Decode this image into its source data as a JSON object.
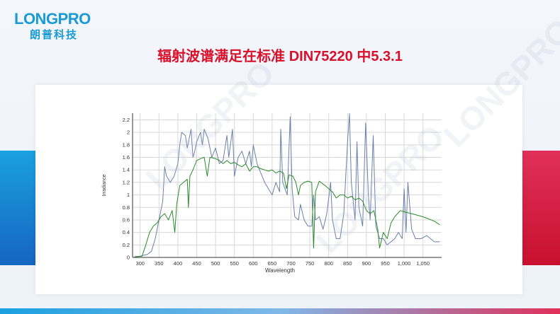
{
  "brand": {
    "logo_text": "LONGPRO",
    "logo_cn": "朗普科技",
    "watermark": "LONGPRO"
  },
  "slide": {
    "title": "辐射波谱满足在标准 DIN75220 中5.3.1"
  },
  "colors": {
    "title": "#d8102a",
    "brand": "#1a9ad6",
    "series_blue": "#6b80aa",
    "series_green": "#2b8a2b"
  },
  "chart_data": {
    "type": "line",
    "xlabel": "Wavelength",
    "ylabel": "Irradiance",
    "xlim": [
      282,
      1100
    ],
    "ylim": [
      0,
      2.3
    ],
    "xticks": [
      "300",
      "350",
      "400",
      "450",
      "500",
      "550",
      "600",
      "650",
      "700",
      "750",
      "800",
      "850",
      "900",
      "950",
      "1,000",
      "1,050"
    ],
    "yticks": [
      "0",
      "0.2",
      "0.4",
      "0.6",
      "0.8",
      "1",
      "1.2",
      "1.4",
      "1.6",
      "1.8",
      "2",
      "2.2"
    ],
    "grid": true,
    "series": [
      {
        "color": "#6b80aa",
        "x": [
          285,
          300,
          320,
          330,
          340,
          350,
          360,
          365,
          370,
          380,
          390,
          400,
          405,
          410,
          420,
          425,
          430,
          435,
          440,
          445,
          450,
          460,
          465,
          470,
          480,
          490,
          500,
          510,
          520,
          530,
          535,
          545,
          550,
          560,
          570,
          580,
          590,
          595,
          600,
          610,
          620,
          630,
          640,
          650,
          660,
          670,
          673,
          678,
          690,
          698,
          703,
          710,
          720,
          725,
          735,
          745,
          755,
          760,
          765,
          775,
          785,
          795,
          805,
          810,
          820,
          830,
          840,
          850,
          855,
          860,
          870,
          875,
          880,
          890,
          898,
          905,
          910,
          918,
          925,
          935,
          945,
          955,
          965,
          975,
          985,
          995,
          1000,
          1005,
          1010,
          1020,
          1030,
          1045,
          1060,
          1080,
          1095
        ],
        "y": [
          0.01,
          0.02,
          0.05,
          0.1,
          0.3,
          0.6,
          0.9,
          1.45,
          1.3,
          1.2,
          1.3,
          1.5,
          1.8,
          2.0,
          1.95,
          1.75,
          1.9,
          2.05,
          1.6,
          1.7,
          1.85,
          2.0,
          1.8,
          2.05,
          1.9,
          1.6,
          1.75,
          1.5,
          1.55,
          1.95,
          1.6,
          2.05,
          1.3,
          1.6,
          1.7,
          1.5,
          1.7,
          1.45,
          1.8,
          1.5,
          1.35,
          1.2,
          1.1,
          1.0,
          1.2,
          1.05,
          2.05,
          1.2,
          1.0,
          2.25,
          1.1,
          0.65,
          0.6,
          0.85,
          0.6,
          0.5,
          0.5,
          1.0,
          0.6,
          0.65,
          0.45,
          0.7,
          1.2,
          0.6,
          0.3,
          0.3,
          0.7,
          1.85,
          2.3,
          1.2,
          0.6,
          1.85,
          0.8,
          0.5,
          2.15,
          1.0,
          0.6,
          1.95,
          0.5,
          0.3,
          0.3,
          0.2,
          0.25,
          0.3,
          0.4,
          0.3,
          1.1,
          0.4,
          1.2,
          0.45,
          0.3,
          0.3,
          0.35,
          0.25,
          0.25
        ]
      },
      {
        "color": "#2b8a2b",
        "x": [
          285,
          305,
          315,
          325,
          335,
          345,
          355,
          365,
          375,
          385,
          392,
          397,
          405,
          415,
          425,
          428,
          432,
          440,
          450,
          460,
          470,
          478,
          485,
          500,
          510,
          520,
          530,
          540,
          550,
          560,
          570,
          580,
          590,
          600,
          610,
          620,
          630,
          640,
          650,
          660,
          670,
          680,
          688,
          695,
          705,
          713,
          720,
          725,
          735,
          745,
          755,
          760,
          765,
          775,
          790,
          800,
          810,
          820,
          830,
          840,
          850,
          860,
          870,
          880,
          890,
          900,
          910,
          920,
          930,
          935,
          945,
          955,
          965,
          975,
          990,
          1000,
          1020,
          1050,
          1080,
          1095
        ],
        "y": [
          0.01,
          0.02,
          0.2,
          0.4,
          0.5,
          0.55,
          0.65,
          0.7,
          0.6,
          0.75,
          0.4,
          0.85,
          1.15,
          1.2,
          1.25,
          0.8,
          1.3,
          1.4,
          1.55,
          1.58,
          1.6,
          1.3,
          1.6,
          1.58,
          1.55,
          1.5,
          1.55,
          1.5,
          1.52,
          1.48,
          1.45,
          1.5,
          1.38,
          1.45,
          1.45,
          1.42,
          1.4,
          1.38,
          1.4,
          1.35,
          1.38,
          1.35,
          1.1,
          1.32,
          1.3,
          1.2,
          1.0,
          1.15,
          1.2,
          1.22,
          1.2,
          0.15,
          1.05,
          1.22,
          1.15,
          1.1,
          1.05,
          0.95,
          1.0,
          1.0,
          0.95,
          0.98,
          0.92,
          0.95,
          0.9,
          0.75,
          0.7,
          0.75,
          0.45,
          0.15,
          0.4,
          0.3,
          0.55,
          0.65,
          0.75,
          0.73,
          0.7,
          0.65,
          0.58,
          0.52
        ]
      }
    ]
  }
}
